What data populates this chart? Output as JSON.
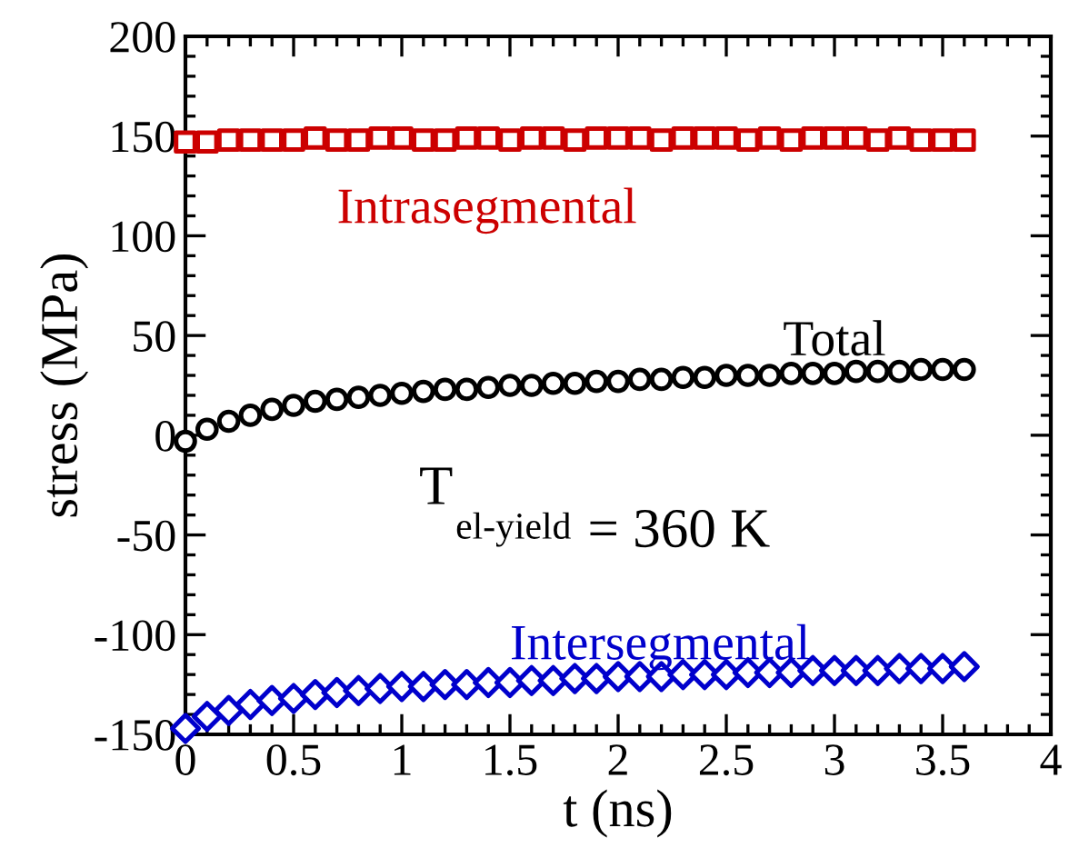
{
  "chart_data": {
    "type": "scatter",
    "xlabel": "t (ns)",
    "ylabel": "stress (MPa)",
    "xlim": [
      0,
      4
    ],
    "xticks": [
      0,
      0.5,
      1,
      1.5,
      2,
      2.5,
      3,
      3.5,
      4
    ],
    "ylim": [
      -150,
      200
    ],
    "yticks": [
      -150,
      -100,
      -50,
      0,
      50,
      100,
      150,
      200
    ],
    "grid": false,
    "legend": false,
    "x": [
      0,
      0.1,
      0.2,
      0.3,
      0.4,
      0.5,
      0.6,
      0.7,
      0.8,
      0.9,
      1,
      1.1,
      1.2,
      1.3,
      1.4,
      1.5,
      1.6,
      1.7,
      1.8,
      1.9,
      2,
      2.1,
      2.2,
      2.3,
      2.4,
      2.5,
      2.6,
      2.7,
      2.8,
      2.9,
      3,
      3.1,
      3.2,
      3.3,
      3.4,
      3.5,
      3.6
    ],
    "series": [
      {
        "name": "Intrasegmental",
        "color": "#cc0000",
        "marker": "square",
        "values": [
          147,
          147,
          148,
          148,
          148,
          148,
          149,
          148,
          148,
          149,
          149,
          148,
          148,
          149,
          149,
          148,
          149,
          149,
          148,
          149,
          149,
          149,
          148,
          149,
          149,
          149,
          148,
          149,
          148,
          149,
          149,
          149,
          148,
          149,
          148,
          148,
          148
        ]
      },
      {
        "name": "Total",
        "color": "#000000",
        "marker": "circle",
        "values": [
          -3,
          3,
          7,
          10,
          13,
          15,
          17,
          18,
          19,
          20,
          21,
          22,
          23,
          23,
          24,
          25,
          25,
          26,
          26,
          27,
          27,
          28,
          28,
          29,
          29,
          30,
          30,
          30,
          31,
          31,
          31,
          32,
          32,
          32,
          33,
          33,
          33
        ]
      },
      {
        "name": "Intersegmental",
        "color": "#0000cc",
        "marker": "diamond",
        "values": [
          -147,
          -141,
          -138,
          -135,
          -133,
          -132,
          -130,
          -129,
          -128,
          -127,
          -126,
          -126,
          -125,
          -125,
          -124,
          -124,
          -123,
          -123,
          -122,
          -122,
          -121,
          -121,
          -121,
          -120,
          -120,
          -120,
          -119,
          -119,
          -119,
          -118,
          -118,
          -118,
          -118,
          -117,
          -117,
          -117,
          -116
        ]
      }
    ],
    "annotations": [
      "T$_{el-yield}$ = 360 K"
    ]
  }
}
